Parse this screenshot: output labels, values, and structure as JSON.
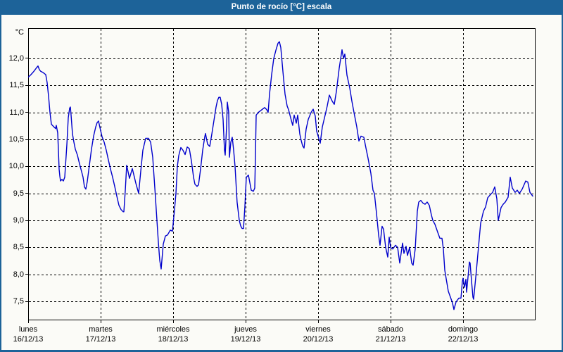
{
  "window": {
    "title": "Punto de rocío [°C] escala"
  },
  "colors": {
    "titlebar_bg": "#1d6399",
    "titlebar_text": "#ffffff",
    "frame_border": "#1d6399",
    "plot_background": "#fbfbf7",
    "line_color": "#0000cc",
    "grid_color": "#000000",
    "label_color": "#000000"
  },
  "chart_data": {
    "type": "line",
    "title": "Punto de rocío [°C] escala",
    "series_name": "Punto de rocío",
    "y_unit": "°C",
    "ylabel": "",
    "xlabel": "",
    "grid": "dashed",
    "legend": "none",
    "ylim": [
      7.15,
      12.56
    ],
    "xlim_days": [
      0,
      7
    ],
    "y_ticks": [
      {
        "label": "12,0",
        "value": 12.0
      },
      {
        "label": "11,5",
        "value": 11.5
      },
      {
        "label": "11,0",
        "value": 11.0
      },
      {
        "label": "10,5",
        "value": 10.5
      },
      {
        "label": "10,0",
        "value": 10.0
      },
      {
        "label": "9,5",
        "value": 9.5
      },
      {
        "label": "9,0",
        "value": 9.0
      },
      {
        "label": "8,5",
        "value": 8.5
      },
      {
        "label": "8,0",
        "value": 8.0
      },
      {
        "label": "7,5",
        "value": 7.5
      }
    ],
    "days": [
      {
        "name": "lunes",
        "date": "16/12/13"
      },
      {
        "name": "martes",
        "date": "17/12/13"
      },
      {
        "name": "miércoles",
        "date": "18/12/13"
      },
      {
        "name": "jueves",
        "date": "19/12/13"
      },
      {
        "name": "viernes",
        "date": "20/12/13"
      },
      {
        "name": "sábado",
        "date": "21/12/13"
      },
      {
        "name": "domingo",
        "date": "22/12/13"
      }
    ],
    "points": [
      [
        0.0,
        11.65
      ],
      [
        0.039,
        11.7
      ],
      [
        0.078,
        11.76
      ],
      [
        0.117,
        11.83
      ],
      [
        0.136,
        11.86
      ],
      [
        0.155,
        11.79
      ],
      [
        0.175,
        11.76
      ],
      [
        0.204,
        11.74
      ],
      [
        0.223,
        11.72
      ],
      [
        0.243,
        11.7
      ],
      [
        0.262,
        11.55
      ],
      [
        0.282,
        11.3
      ],
      [
        0.301,
        11.0
      ],
      [
        0.32,
        10.78
      ],
      [
        0.35,
        10.74
      ],
      [
        0.379,
        10.7
      ],
      [
        0.388,
        10.76
      ],
      [
        0.408,
        10.62
      ],
      [
        0.417,
        10.3
      ],
      [
        0.427,
        9.95
      ],
      [
        0.437,
        9.82
      ],
      [
        0.447,
        9.73
      ],
      [
        0.466,
        9.76
      ],
      [
        0.485,
        9.73
      ],
      [
        0.505,
        9.8
      ],
      [
        0.534,
        10.4
      ],
      [
        0.553,
        10.9
      ],
      [
        0.573,
        11.08
      ],
      [
        0.583,
        11.1
      ],
      [
        0.592,
        10.95
      ],
      [
        0.612,
        10.6
      ],
      [
        0.631,
        10.45
      ],
      [
        0.65,
        10.32
      ],
      [
        0.68,
        10.21
      ],
      [
        0.699,
        10.1
      ],
      [
        0.718,
        10.0
      ],
      [
        0.738,
        9.9
      ],
      [
        0.757,
        9.8
      ],
      [
        0.777,
        9.62
      ],
      [
        0.796,
        9.58
      ],
      [
        0.816,
        9.72
      ],
      [
        0.845,
        10.02
      ],
      [
        0.874,
        10.32
      ],
      [
        0.903,
        10.56
      ],
      [
        0.932,
        10.73
      ],
      [
        0.951,
        10.81
      ],
      [
        0.971,
        10.84
      ],
      [
        0.99,
        10.72
      ],
      [
        1.019,
        10.55
      ],
      [
        1.049,
        10.45
      ],
      [
        1.078,
        10.3
      ],
      [
        1.107,
        10.12
      ],
      [
        1.136,
        9.95
      ],
      [
        1.165,
        9.8
      ],
      [
        1.194,
        9.63
      ],
      [
        1.223,
        9.45
      ],
      [
        1.252,
        9.28
      ],
      [
        1.282,
        9.2
      ],
      [
        1.311,
        9.16
      ],
      [
        1.32,
        9.16
      ],
      [
        1.34,
        9.55
      ],
      [
        1.359,
        10.02
      ],
      [
        1.398,
        9.78
      ],
      [
        1.437,
        9.96
      ],
      [
        1.485,
        9.69
      ],
      [
        1.524,
        9.5
      ],
      [
        1.553,
        9.91
      ],
      [
        1.583,
        10.3
      ],
      [
        1.621,
        10.52
      ],
      [
        1.66,
        10.52
      ],
      [
        1.689,
        10.45
      ],
      [
        1.718,
        10.17
      ],
      [
        1.748,
        9.6
      ],
      [
        1.777,
        9.0
      ],
      [
        1.796,
        8.6
      ],
      [
        1.816,
        8.26
      ],
      [
        1.835,
        8.1
      ],
      [
        1.864,
        8.56
      ],
      [
        1.893,
        8.71
      ],
      [
        1.922,
        8.73
      ],
      [
        1.961,
        8.82
      ],
      [
        1.99,
        8.8
      ],
      [
        2.019,
        9.2
      ],
      [
        2.039,
        9.5
      ],
      [
        2.058,
        10.0
      ],
      [
        2.078,
        10.2
      ],
      [
        2.107,
        10.35
      ],
      [
        2.136,
        10.3
      ],
      [
        2.165,
        10.22
      ],
      [
        2.194,
        10.36
      ],
      [
        2.223,
        10.33
      ],
      [
        2.252,
        10.1
      ],
      [
        2.282,
        9.8
      ],
      [
        2.301,
        9.67
      ],
      [
        2.33,
        9.63
      ],
      [
        2.35,
        9.66
      ],
      [
        2.379,
        9.95
      ],
      [
        2.408,
        10.3
      ],
      [
        2.437,
        10.55
      ],
      [
        2.447,
        10.61
      ],
      [
        2.476,
        10.41
      ],
      [
        2.505,
        10.37
      ],
      [
        2.534,
        10.6
      ],
      [
        2.563,
        10.85
      ],
      [
        2.592,
        11.1
      ],
      [
        2.612,
        11.22
      ],
      [
        2.631,
        11.28
      ],
      [
        2.65,
        11.28
      ],
      [
        2.67,
        11.15
      ],
      [
        2.689,
        10.87
      ],
      [
        2.709,
        10.3
      ],
      [
        2.718,
        10.21
      ],
      [
        2.738,
        10.75
      ],
      [
        2.748,
        11.19
      ],
      [
        2.767,
        11.0
      ],
      [
        2.777,
        10.17
      ],
      [
        2.796,
        10.45
      ],
      [
        2.816,
        10.54
      ],
      [
        2.835,
        10.3
      ],
      [
        2.854,
        10.0
      ],
      [
        2.883,
        9.34
      ],
      [
        2.913,
        9.0
      ],
      [
        2.932,
        8.9
      ],
      [
        2.951,
        8.85
      ],
      [
        2.971,
        8.85
      ],
      [
        2.99,
        9.26
      ],
      [
        3.01,
        9.8
      ],
      [
        3.039,
        9.84
      ],
      [
        3.058,
        9.7
      ],
      [
        3.078,
        9.56
      ],
      [
        3.107,
        9.54
      ],
      [
        3.126,
        9.6
      ],
      [
        3.136,
        10.2
      ],
      [
        3.146,
        10.95
      ],
      [
        3.175,
        11.0
      ],
      [
        3.204,
        11.03
      ],
      [
        3.233,
        11.06
      ],
      [
        3.262,
        11.09
      ],
      [
        3.291,
        11.05
      ],
      [
        3.311,
        11.0
      ],
      [
        3.33,
        11.34
      ],
      [
        3.359,
        11.7
      ],
      [
        3.388,
        12.0
      ],
      [
        3.417,
        12.15
      ],
      [
        3.447,
        12.28
      ],
      [
        3.466,
        12.31
      ],
      [
        3.485,
        12.2
      ],
      [
        3.515,
        11.76
      ],
      [
        3.544,
        11.34
      ],
      [
        3.573,
        11.12
      ],
      [
        3.592,
        11.05
      ],
      [
        3.621,
        10.9
      ],
      [
        3.65,
        10.76
      ],
      [
        3.67,
        10.95
      ],
      [
        3.699,
        10.8
      ],
      [
        3.718,
        10.95
      ],
      [
        3.748,
        10.6
      ],
      [
        3.767,
        10.48
      ],
      [
        3.786,
        10.38
      ],
      [
        3.806,
        10.34
      ],
      [
        3.835,
        10.69
      ],
      [
        3.864,
        10.87
      ],
      [
        3.903,
        11.0
      ],
      [
        3.932,
        11.06
      ],
      [
        3.961,
        10.93
      ],
      [
        3.981,
        10.65
      ],
      [
        4.01,
        10.52
      ],
      [
        4.029,
        10.43
      ],
      [
        4.058,
        10.73
      ],
      [
        4.097,
        10.95
      ],
      [
        4.126,
        11.12
      ],
      [
        4.155,
        11.32
      ],
      [
        4.194,
        11.21
      ],
      [
        4.223,
        11.15
      ],
      [
        4.252,
        11.39
      ],
      [
        4.291,
        11.82
      ],
      [
        4.33,
        12.16
      ],
      [
        4.35,
        12.0
      ],
      [
        4.369,
        12.08
      ],
      [
        4.398,
        11.69
      ],
      [
        4.437,
        11.45
      ],
      [
        4.466,
        11.21
      ],
      [
        4.495,
        11.0
      ],
      [
        4.534,
        10.73
      ],
      [
        4.563,
        10.47
      ],
      [
        4.592,
        10.56
      ],
      [
        4.631,
        10.54
      ],
      [
        4.66,
        10.34
      ],
      [
        4.689,
        10.15
      ],
      [
        4.728,
        9.87
      ],
      [
        4.757,
        9.56
      ],
      [
        4.777,
        9.5
      ],
      [
        4.806,
        9.13
      ],
      [
        4.835,
        8.73
      ],
      [
        4.854,
        8.54
      ],
      [
        4.883,
        8.89
      ],
      [
        4.903,
        8.84
      ],
      [
        4.932,
        8.5
      ],
      [
        4.961,
        8.32
      ],
      [
        4.981,
        8.69
      ],
      [
        5.0,
        8.5
      ],
      [
        5.029,
        8.47
      ],
      [
        5.068,
        8.54
      ],
      [
        5.097,
        8.5
      ],
      [
        5.126,
        8.21
      ],
      [
        5.165,
        8.58
      ],
      [
        5.184,
        8.39
      ],
      [
        5.214,
        8.52
      ],
      [
        5.233,
        8.35
      ],
      [
        5.262,
        8.5
      ],
      [
        5.291,
        8.21
      ],
      [
        5.311,
        8.17
      ],
      [
        5.34,
        8.47
      ],
      [
        5.369,
        9.17
      ],
      [
        5.388,
        9.34
      ],
      [
        5.417,
        9.37
      ],
      [
        5.447,
        9.32
      ],
      [
        5.476,
        9.3
      ],
      [
        5.505,
        9.34
      ],
      [
        5.534,
        9.28
      ],
      [
        5.563,
        9.1
      ],
      [
        5.583,
        9.0
      ],
      [
        5.612,
        8.93
      ],
      [
        5.65,
        8.78
      ],
      [
        5.68,
        8.67
      ],
      [
        5.709,
        8.67
      ],
      [
        5.728,
        8.47
      ],
      [
        5.748,
        8.08
      ],
      [
        5.767,
        7.92
      ],
      [
        5.796,
        7.69
      ],
      [
        5.825,
        7.58
      ],
      [
        5.854,
        7.47
      ],
      [
        5.874,
        7.35
      ],
      [
        5.903,
        7.49
      ],
      [
        5.942,
        7.56
      ],
      [
        5.971,
        7.56
      ],
      [
        5.99,
        7.87
      ],
      [
        6.0,
        7.93
      ],
      [
        6.019,
        7.76
      ],
      [
        6.039,
        7.91
      ],
      [
        6.049,
        7.67
      ],
      [
        6.087,
        8.23
      ],
      [
        6.097,
        8.21
      ],
      [
        6.117,
        7.87
      ],
      [
        6.136,
        7.58
      ],
      [
        6.146,
        7.54
      ],
      [
        6.184,
        8.08
      ],
      [
        6.214,
        8.52
      ],
      [
        6.243,
        8.95
      ],
      [
        6.282,
        9.17
      ],
      [
        6.311,
        9.25
      ],
      [
        6.34,
        9.42
      ],
      [
        6.379,
        9.48
      ],
      [
        6.408,
        9.52
      ],
      [
        6.437,
        9.62
      ],
      [
        6.466,
        9.4
      ],
      [
        6.485,
        9.0
      ],
      [
        6.524,
        9.24
      ],
      [
        6.553,
        9.3
      ],
      [
        6.583,
        9.34
      ],
      [
        6.621,
        9.43
      ],
      [
        6.65,
        9.8
      ],
      [
        6.68,
        9.6
      ],
      [
        6.718,
        9.52
      ],
      [
        6.748,
        9.56
      ],
      [
        6.777,
        9.5
      ],
      [
        6.816,
        9.58
      ],
      [
        6.864,
        9.73
      ],
      [
        6.893,
        9.71
      ],
      [
        6.922,
        9.52
      ],
      [
        6.961,
        9.45
      ]
    ]
  }
}
